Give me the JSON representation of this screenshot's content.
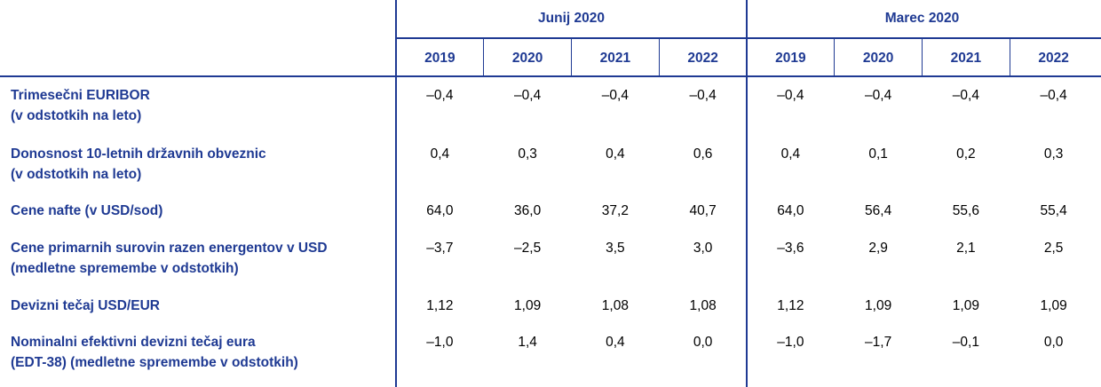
{
  "table": {
    "groups": [
      {
        "title": "Junij 2020",
        "years": [
          "2019",
          "2020",
          "2021",
          "2022"
        ]
      },
      {
        "title": "Marec 2020",
        "years": [
          "2019",
          "2020",
          "2021",
          "2022"
        ]
      }
    ],
    "rows": [
      {
        "label": [
          "Trimesečni EURIBOR",
          "(v odstotkih na leto)"
        ],
        "values": [
          "–0,4",
          "–0,4",
          "–0,4",
          "–0,4",
          "–0,4",
          "–0,4",
          "–0,4",
          "–0,4"
        ]
      },
      {
        "label": [
          "Donosnost 10-letnih državnih obveznic",
          "(v odstotkih na leto)"
        ],
        "values": [
          "0,4",
          "0,3",
          "0,4",
          "0,6",
          "0,4",
          "0,1",
          "0,2",
          "0,3"
        ]
      },
      {
        "label": [
          "Cene nafte (v USD/sod)"
        ],
        "values": [
          "64,0",
          "36,0",
          "37,2",
          "40,7",
          "64,0",
          "56,4",
          "55,6",
          "55,4"
        ]
      },
      {
        "label": [
          "Cene primarnih surovin razen energentov v USD",
          "(medletne spremembe v odstotkih)"
        ],
        "values": [
          "–3,7",
          "–2,5",
          "3,5",
          "3,0",
          "–3,6",
          "2,9",
          "2,1",
          "2,5"
        ]
      },
      {
        "label": [
          "Devizni tečaj USD/EUR"
        ],
        "values": [
          "1,12",
          "1,09",
          "1,08",
          "1,08",
          "1,12",
          "1,09",
          "1,09",
          "1,09"
        ]
      },
      {
        "label": [
          "Nominalni efektivni devizni tečaj eura",
          "(EDT-38) (medletne spremembe v odstotkih)"
        ],
        "values": [
          "–1,0",
          "1,4",
          "0,4",
          "0,0",
          "–1,0",
          "–1,7",
          "–0,1",
          "0,0"
        ]
      }
    ]
  }
}
